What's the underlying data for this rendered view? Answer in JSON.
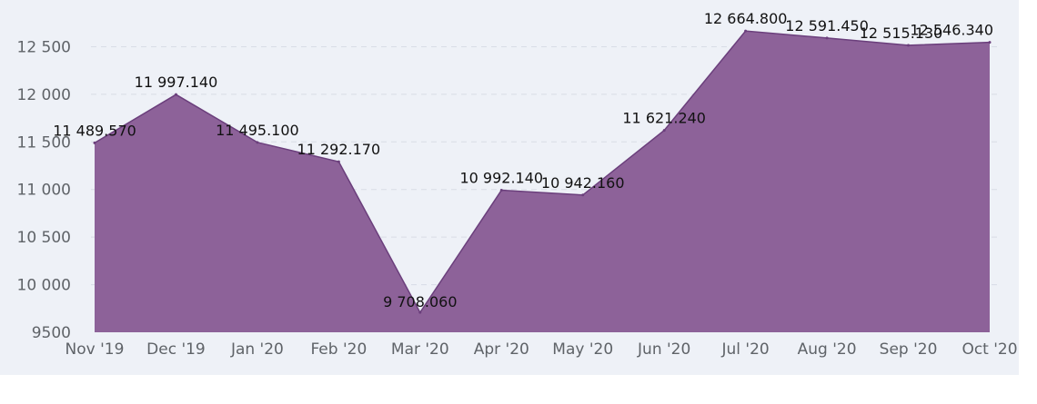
{
  "chart_data": {
    "type": "area",
    "categories": [
      "Nov '19",
      "Dec '19",
      "Jan '20",
      "Feb '20",
      "Mar '20",
      "Apr '20",
      "May '20",
      "Jun '20",
      "Jul '20",
      "Aug '20",
      "Sep '20",
      "Oct '20"
    ],
    "values": [
      11489.57,
      11997.14,
      11495.1,
      11292.17,
      9708.06,
      10992.14,
      10942.16,
      11621.24,
      12664.8,
      12591.45,
      12515.13,
      12546.34
    ],
    "data_labels": [
      "11 489.570",
      "11 997.140",
      "11 495.100",
      "11 292.170",
      "9 708.060",
      "10 992.140",
      "10 942.160",
      "11 621.240",
      "12 664.800",
      "12 591.450",
      "12 515.130",
      "12 546.340"
    ],
    "y_ticks": [
      9500,
      10000,
      10500,
      11000,
      11500,
      12000,
      12500
    ],
    "y_tick_labels": [
      "9500",
      "10 000",
      "10 500",
      "11 000",
      "11 500",
      "12 000",
      "12 500"
    ],
    "ylim": [
      9500,
      12800
    ],
    "grid": true,
    "legend": false,
    "colors": {
      "fill": "#8d6299",
      "line": "#6b3f7c",
      "background": "#eef1f7"
    }
  }
}
